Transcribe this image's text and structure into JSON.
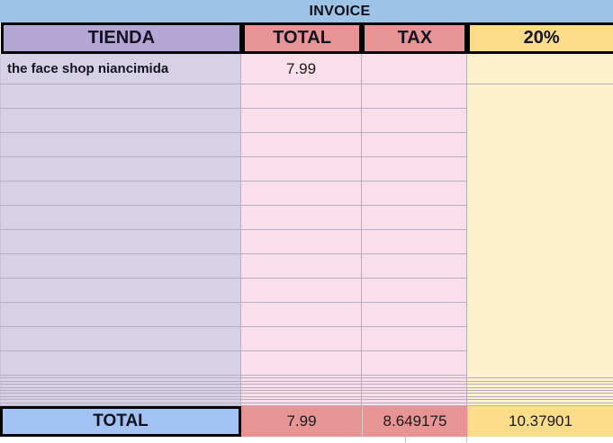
{
  "title_bar": {
    "title": "INVOICE"
  },
  "header": {
    "columns": [
      "TIENDA",
      "TOTAL",
      "TAX",
      "20%"
    ]
  },
  "rows": [
    {
      "tienda": "the face shop niancimida",
      "total": "7.99",
      "tax": "",
      "pct": ""
    }
  ],
  "footer": {
    "label": "TOTAL",
    "total": "7.99",
    "tax": "8.649175",
    "pct": "10.37901"
  },
  "layout_counts": {
    "empty_rows": 12,
    "compressed_rows": 10
  },
  "colors": {
    "title_bg": "#9DC3E6",
    "header_tienda_bg": "#B4A7D6",
    "header_total_tax_bg": "#E89494",
    "header_pct_bg": "#FBDC88",
    "cell_tienda_bg": "#D7D1E5",
    "cell_total_tax_bg": "#FADEEA",
    "cell_pct_bg": "#FDF0CD",
    "footer_label_bg": "#A2C3F3",
    "footer_total_tax_bg": "#E89494",
    "footer_pct_bg": "#FBDC88",
    "gridline": "#b6adbe",
    "border": "#000000"
  }
}
